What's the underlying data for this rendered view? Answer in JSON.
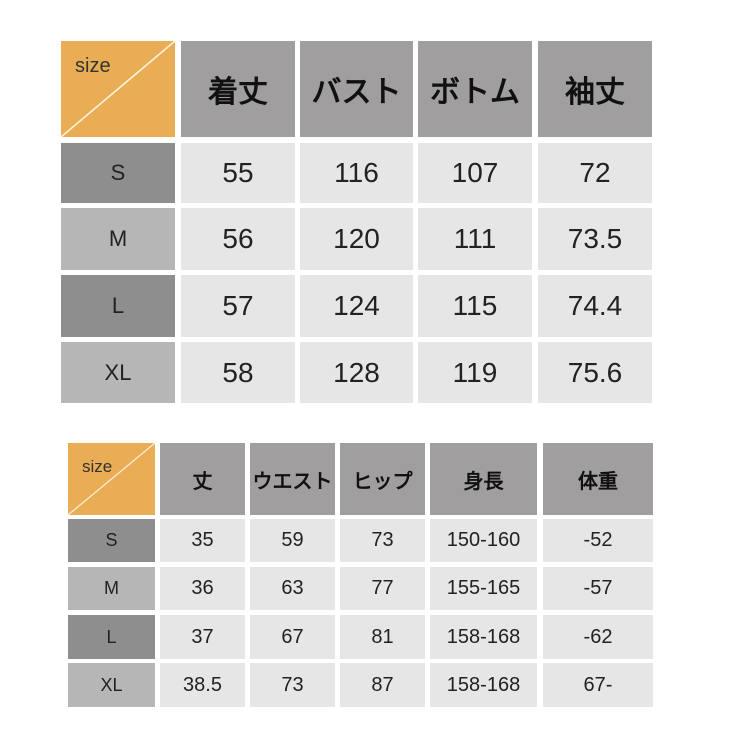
{
  "top": {
    "corner": "size",
    "headers": [
      "着丈",
      "バスト",
      "ボトム",
      "袖丈"
    ],
    "rows": [
      {
        "size": "S",
        "values": [
          "55",
          "116",
          "107",
          "72"
        ]
      },
      {
        "size": "M",
        "values": [
          "56",
          "120",
          "111",
          "73.5"
        ]
      },
      {
        "size": "L",
        "values": [
          "57",
          "124",
          "115",
          "74.4"
        ]
      },
      {
        "size": "XL",
        "values": [
          "58",
          "128",
          "119",
          "75.6"
        ]
      }
    ]
  },
  "bottom": {
    "corner": "size",
    "headers": [
      "丈",
      "ウエスト",
      "ヒップ",
      "身長",
      "体重"
    ],
    "rows": [
      {
        "size": "S",
        "values": [
          "35",
          "59",
          "73",
          "150-160",
          "-52"
        ]
      },
      {
        "size": "M",
        "values": [
          "36",
          "63",
          "77",
          "155-165",
          "-57"
        ]
      },
      {
        "size": "L",
        "values": [
          "37",
          "67",
          "81",
          "158-168",
          "-62"
        ]
      },
      {
        "size": "XL",
        "values": [
          "38.5",
          "73",
          "87",
          "158-168",
          "67-"
        ]
      }
    ]
  },
  "colors": {
    "corner": "#e9ae55",
    "header": "#a09e9f",
    "cell": "#e6e6e6"
  }
}
